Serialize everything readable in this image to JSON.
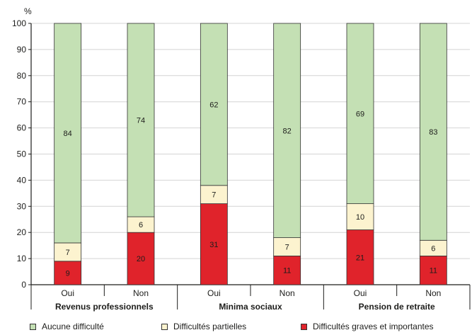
{
  "chart_data": {
    "type": "bar",
    "stacked": true,
    "unit_label": "%",
    "ylim": [
      0,
      100
    ],
    "yticks": [
      0,
      10,
      20,
      30,
      40,
      50,
      60,
      70,
      80,
      90,
      100
    ],
    "categories": [
      "Oui",
      "Non",
      "Oui",
      "Non",
      "Oui",
      "Non"
    ],
    "groups": [
      {
        "label": "Revenus professionnels",
        "categories": [
          "Oui",
          "Non"
        ]
      },
      {
        "label": "Minima sociaux",
        "categories": [
          "Oui",
          "Non"
        ]
      },
      {
        "label": "Pension de retraite",
        "categories": [
          "Oui",
          "Non"
        ]
      }
    ],
    "series": [
      {
        "name": "Difficultés graves et importantes",
        "color": "#e0232b",
        "values": [
          9,
          20,
          31,
          11,
          21,
          11
        ]
      },
      {
        "name": "Difficultés partielles",
        "color": "#fcf3cf",
        "values": [
          7,
          6,
          7,
          7,
          10,
          6
        ]
      },
      {
        "name": "Aucune difficulté",
        "color": "#c4e0b4",
        "values": [
          84,
          74,
          62,
          82,
          69,
          83
        ]
      }
    ],
    "legend": [
      {
        "name": "Aucune difficulté",
        "color": "#c4e0b4"
      },
      {
        "name": "Difficultés partielles",
        "color": "#fcf3cf"
      },
      {
        "name": "Difficultés graves et importantes",
        "color": "#e0232b"
      }
    ],
    "grid": true,
    "legend_position": "bottom"
  }
}
